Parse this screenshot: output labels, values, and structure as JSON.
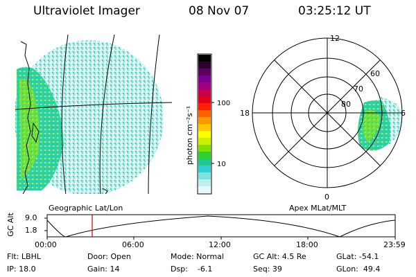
{
  "header": {
    "instrument": "Ultraviolet Imager",
    "date": "08 Nov 07",
    "time": "03:25:12 UT"
  },
  "geo_panel": {
    "label": "Geographic Lat/Lon"
  },
  "polar_panel": {
    "label": "Apex MLat/MLT",
    "mlt_labels": [
      "12",
      "18",
      "6",
      "0"
    ],
    "lat_labels": [
      "60",
      "70",
      "80"
    ]
  },
  "colorbar": {
    "unit_label": "photon cm⁻²s⁻¹",
    "ticks": [
      "100",
      "10"
    ],
    "colors": [
      "#000000",
      "#300030",
      "#5a0060",
      "#7a0090",
      "#a00080",
      "#c80048",
      "#e00020",
      "#ff2000",
      "#ff6000",
      "#ff9800",
      "#ffc800",
      "#ffff00",
      "#c8f000",
      "#80e000",
      "#30d030",
      "#20c890",
      "#30d0d0",
      "#80e0e0",
      "#c0eeee",
      "#e8f8f8"
    ]
  },
  "orbit_plot": {
    "ylabel": "GC Alt",
    "yticks": [
      "9.0",
      "1.8"
    ],
    "xticks": [
      "00:00",
      "06:00",
      "12:00",
      "18:00",
      "23:59"
    ],
    "marker_color": "#cc0000"
  },
  "footer": {
    "row1": {
      "flt": "Flt: LBHL",
      "door": "Door: Open",
      "mode": "Mode: Normal",
      "gcalt": "GC Alt: 4.5 Re",
      "glat": "GLat: -54.1"
    },
    "row2": {
      "ip": "IP: 18.0",
      "gain": "Gain: 14",
      "dsp": "Dsp:    -6.1",
      "seq": "Seq: 39",
      "glon": "GLon:  49.4"
    }
  }
}
